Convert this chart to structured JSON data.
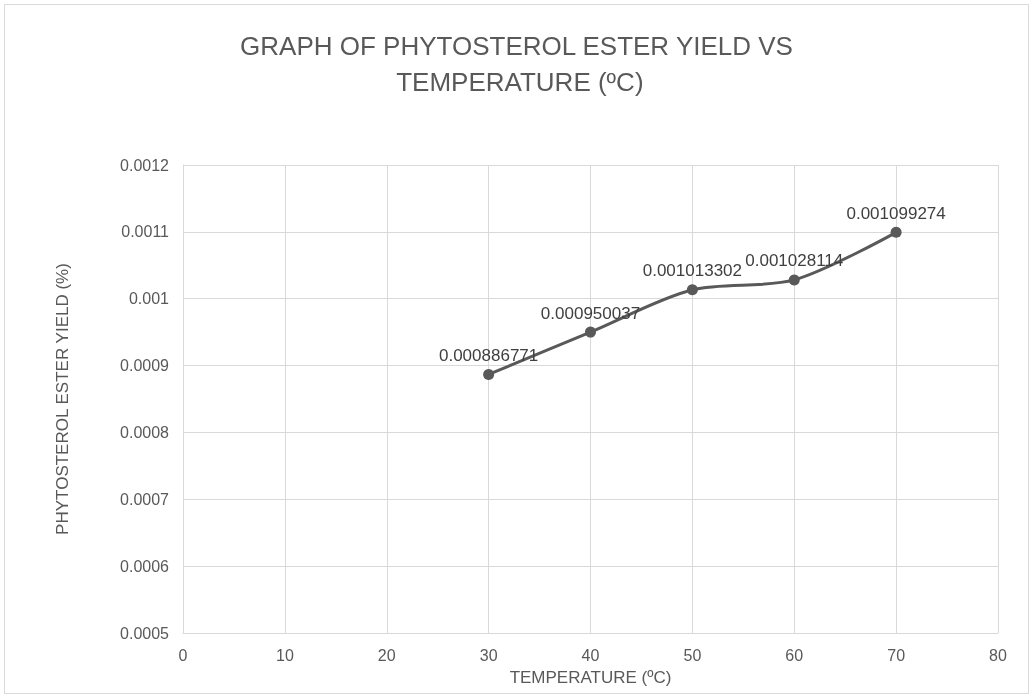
{
  "chart_data": {
    "type": "line",
    "title": "GRAPH OF PHYTOSTEROL ESTER YIELD VS TEMPERATURE (ºC)",
    "xlabel": "TEMPERATURE (ºC)",
    "ylabel": "PHYTOSTEROL ESTER YIELD (%)",
    "x": [
      30,
      40,
      50,
      60,
      70
    ],
    "series": [
      {
        "color": "#595959",
        "values": [
          0.000886771,
          0.000950037,
          0.001013302,
          0.001028114,
          0.001099274
        ]
      }
    ],
    "xlim": [
      0,
      80
    ],
    "xticks": [
      0,
      10,
      20,
      30,
      40,
      50,
      60,
      70,
      80
    ],
    "ylim": [
      0.0005,
      0.0012
    ],
    "yticks": [
      0.0005,
      0.0006,
      0.0007,
      0.0008,
      0.0009,
      0.001,
      0.0011,
      0.0012
    ],
    "grid": true,
    "marker": "circle",
    "line_style": "solid",
    "data_labels": true
  }
}
